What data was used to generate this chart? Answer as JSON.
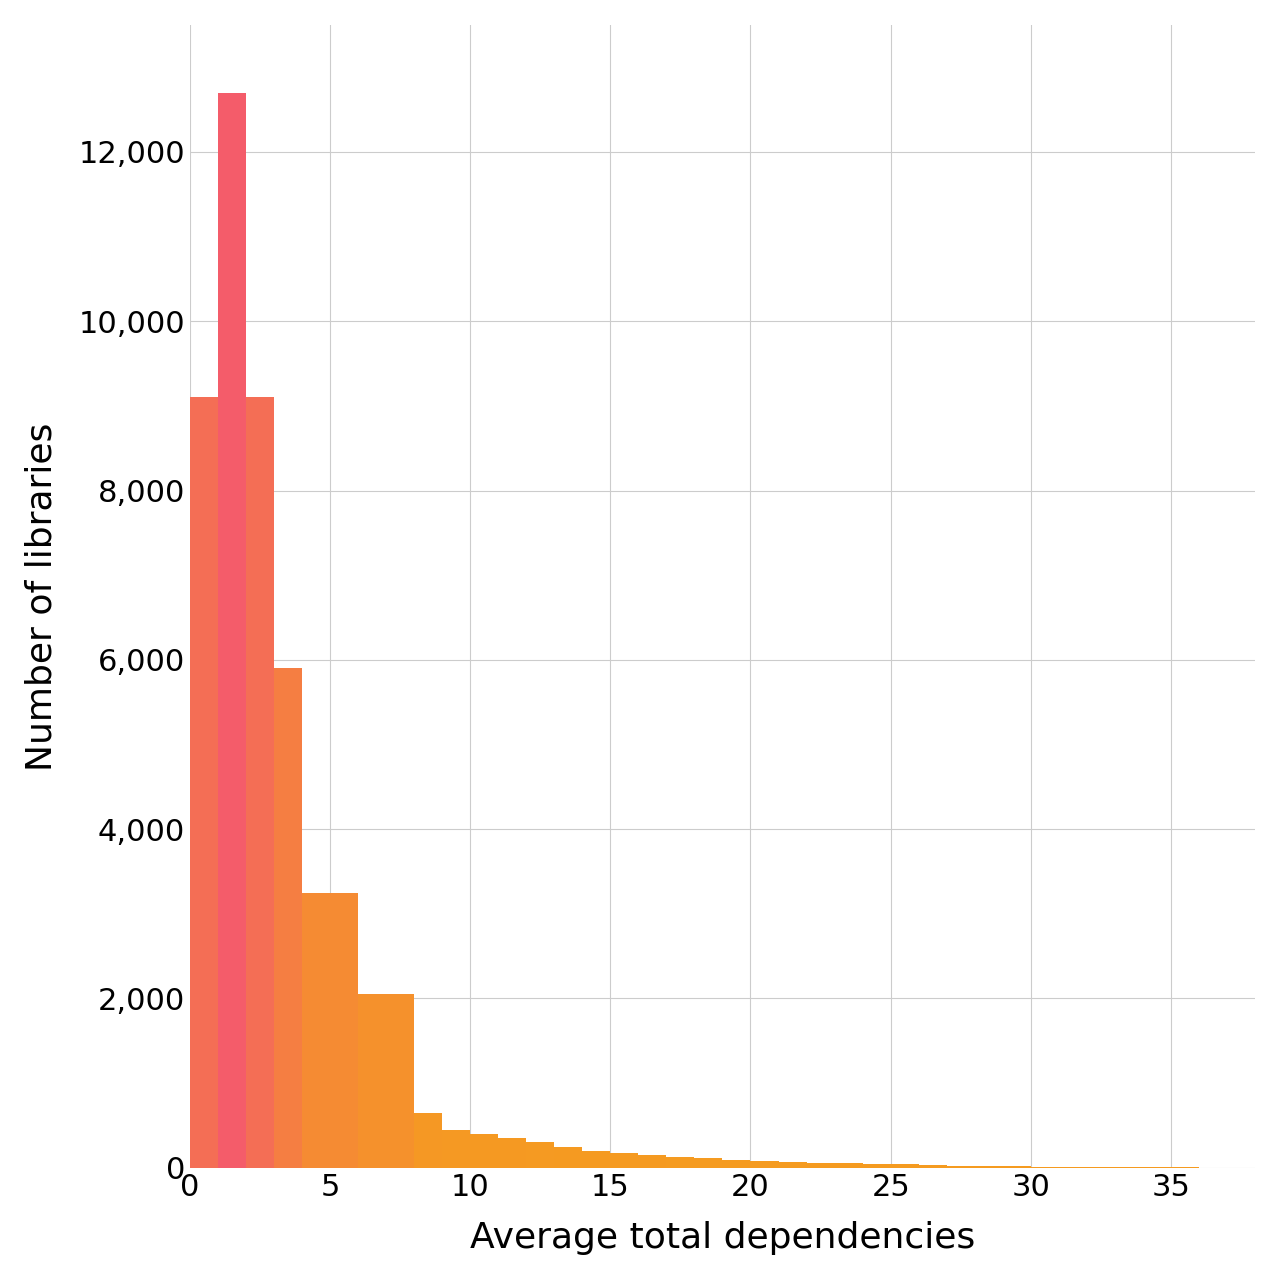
{
  "xlabel": "Average total dependencies",
  "ylabel": "Number of libraries",
  "background_color": "#ffffff",
  "grid_color": "#cccccc",
  "bar_left_edges": [
    0,
    1,
    2,
    3,
    4,
    5,
    6,
    7,
    8,
    9,
    10,
    11,
    12,
    13,
    14,
    15,
    16,
    17,
    18,
    19,
    20,
    21,
    22,
    23,
    24,
    25,
    26,
    27,
    28,
    29,
    30,
    31,
    32,
    33,
    34,
    35,
    36,
    37
  ],
  "bar_values": [
    9100,
    12700,
    9100,
    5900,
    3250,
    3250,
    2050,
    2050,
    650,
    450,
    400,
    350,
    300,
    250,
    200,
    175,
    150,
    130,
    110,
    90,
    80,
    70,
    60,
    50,
    45,
    40,
    30,
    25,
    20,
    15,
    10,
    8,
    6,
    5,
    4,
    3,
    2,
    1
  ],
  "color_high": "#f45c6a",
  "color_low": "#f59b20",
  "ylim": [
    0,
    13500
  ],
  "xlim": [
    0,
    38
  ],
  "yticks": [
    0,
    2000,
    4000,
    6000,
    8000,
    10000,
    12000
  ],
  "xticks": [
    0,
    5,
    10,
    15,
    20,
    25,
    30,
    35
  ],
  "axis_label_fontsize": 26,
  "tick_fontsize": 22
}
